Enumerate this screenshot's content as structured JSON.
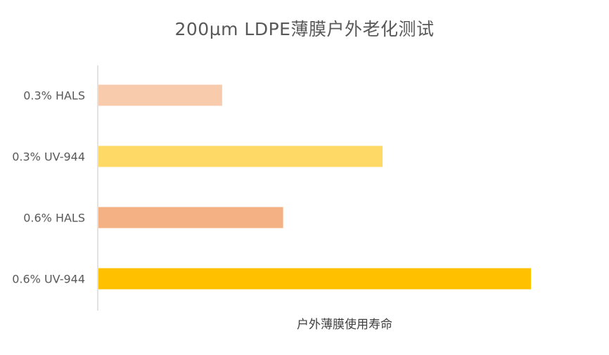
{
  "chart_data": {
    "type": "bar",
    "orientation": "horizontal",
    "title": "200µm LDPE薄膜户外老化测试",
    "xlabel": "户外薄膜使用寿命",
    "ylabel": "",
    "categories": [
      "0.3% HALS",
      "0.3% UV-944",
      "0.6% HALS",
      "0.6% UV-944"
    ],
    "values": [
      0.286,
      0.657,
      0.427,
      1.0
    ],
    "value_scale": "relative (no numeric axis shown)",
    "colors": [
      "#F8CBAD",
      "#FFD966",
      "#F4B183",
      "#FFC000"
    ],
    "axis_color": "#D9D9D9",
    "grid": false,
    "legend": "none"
  }
}
